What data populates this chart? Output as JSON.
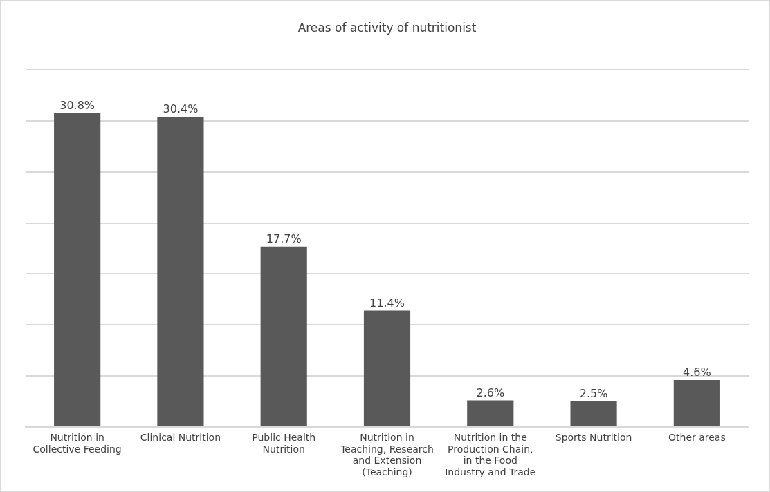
{
  "chart_data": {
    "type": "bar",
    "title": "Areas of activity of nutritionist",
    "categories": [
      "Nutrition in Collective Feeding",
      "Clinical Nutrition",
      "Public Health Nutrition",
      "Nutrition in Teaching, Research and Extension (Teaching)",
      "Nutrition in the Production Chain, in the Food Industry and Trade",
      "Sports Nutrition",
      "Other areas"
    ],
    "values": [
      30.8,
      30.4,
      17.7,
      11.4,
      2.6,
      2.5,
      4.6
    ],
    "value_labels": [
      "30.8%",
      "30.4%",
      "17.7%",
      "11.4%",
      "2.6%",
      "2.5%",
      "4.6%"
    ],
    "color": "#595959",
    "ylim": [
      0,
      35
    ],
    "yticks": [
      {
        "value": 0,
        "label": null
      },
      {
        "value": 5,
        "label": null
      },
      {
        "value": 10,
        "label": null
      },
      {
        "value": 15,
        "label": null
      },
      {
        "value": 20,
        "label": null
      },
      {
        "value": 25,
        "label": null
      },
      {
        "value": 30,
        "label": null
      },
      {
        "value": 35,
        "label": null
      }
    ],
    "grid": "y",
    "tick_labels": "x",
    "legend": false
  }
}
